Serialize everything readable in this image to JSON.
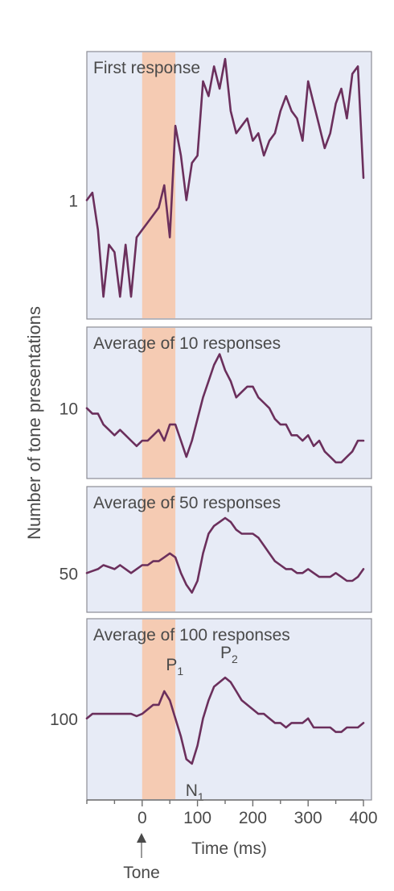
{
  "chart_data": {
    "type": "line",
    "ylabel": "Number of tone presentations",
    "xlabel": "Time (ms)",
    "x_ticks": [
      0,
      100,
      200,
      300,
      400
    ],
    "xlim": [
      -100,
      400
    ],
    "stimulus": {
      "label": "Tone",
      "shaded_interval_ms": [
        0,
        60
      ],
      "color": "#f6c8ac"
    },
    "trace_color": "#6b2f5c",
    "panels": [
      {
        "title": "First response",
        "row_label": "1",
        "ylim": [
          -1.6,
          2.0
        ],
        "x": [
          -100,
          -90,
          -80,
          -70,
          -60,
          -50,
          -40,
          -30,
          -20,
          -10,
          0,
          10,
          20,
          30,
          40,
          50,
          60,
          70,
          80,
          90,
          100,
          110,
          120,
          130,
          140,
          150,
          160,
          170,
          180,
          190,
          200,
          210,
          220,
          230,
          240,
          250,
          260,
          270,
          280,
          290,
          300,
          310,
          320,
          330,
          340,
          350,
          360,
          370,
          380,
          390,
          400
        ],
        "values": [
          0.0,
          0.1,
          -0.4,
          -1.3,
          -0.6,
          -0.7,
          -1.3,
          -0.6,
          -1.3,
          -0.5,
          -0.4,
          -0.3,
          -0.2,
          -0.1,
          0.2,
          -0.5,
          1.0,
          0.6,
          0.0,
          0.5,
          0.6,
          1.6,
          1.4,
          1.8,
          1.5,
          1.9,
          1.2,
          0.9,
          1.0,
          1.1,
          0.8,
          0.9,
          0.6,
          0.8,
          0.9,
          1.2,
          1.4,
          1.2,
          1.1,
          0.8,
          1.6,
          1.3,
          1.0,
          0.7,
          0.9,
          1.3,
          1.5,
          1.1,
          1.7,
          1.8,
          0.3
        ]
      },
      {
        "title": "Average of 10 responses",
        "row_label": "10",
        "ylim": [
          -1.3,
          1.5
        ],
        "x": [
          -100,
          -90,
          -80,
          -70,
          -60,
          -50,
          -40,
          -30,
          -20,
          -10,
          0,
          10,
          20,
          30,
          40,
          50,
          60,
          70,
          80,
          90,
          100,
          110,
          120,
          130,
          140,
          150,
          160,
          170,
          180,
          190,
          200,
          210,
          220,
          230,
          240,
          250,
          260,
          270,
          280,
          290,
          300,
          310,
          320,
          330,
          340,
          350,
          360,
          370,
          380,
          390,
          400
        ],
        "values": [
          0.0,
          -0.1,
          -0.1,
          -0.3,
          -0.4,
          -0.5,
          -0.4,
          -0.5,
          -0.6,
          -0.7,
          -0.6,
          -0.6,
          -0.5,
          -0.4,
          -0.6,
          -0.3,
          -0.3,
          -0.6,
          -0.9,
          -0.6,
          -0.2,
          0.2,
          0.5,
          0.8,
          1.0,
          0.7,
          0.5,
          0.2,
          0.3,
          0.4,
          0.4,
          0.2,
          0.1,
          0.0,
          -0.2,
          -0.3,
          -0.3,
          -0.5,
          -0.5,
          -0.6,
          -0.5,
          -0.7,
          -0.6,
          -0.8,
          -0.9,
          -1.0,
          -1.0,
          -0.9,
          -0.8,
          -0.6,
          -0.6
        ]
      },
      {
        "title": "Average of 50 responses",
        "row_label": "50",
        "ylim": [
          -1.0,
          2.2
        ],
        "x": [
          -100,
          -90,
          -80,
          -70,
          -60,
          -50,
          -40,
          -30,
          -20,
          -10,
          0,
          10,
          20,
          30,
          40,
          50,
          60,
          70,
          80,
          90,
          100,
          110,
          120,
          130,
          140,
          150,
          160,
          170,
          180,
          190,
          200,
          210,
          220,
          230,
          240,
          250,
          260,
          270,
          280,
          290,
          300,
          310,
          320,
          330,
          340,
          350,
          360,
          370,
          380,
          390,
          400
        ],
        "values": [
          0.0,
          0.05,
          0.1,
          0.2,
          0.15,
          0.1,
          0.2,
          0.1,
          0.0,
          0.1,
          0.2,
          0.2,
          0.3,
          0.3,
          0.4,
          0.5,
          0.4,
          0.0,
          -0.3,
          -0.5,
          -0.2,
          0.5,
          1.0,
          1.2,
          1.3,
          1.4,
          1.3,
          1.1,
          1.0,
          1.0,
          1.0,
          0.9,
          0.7,
          0.5,
          0.3,
          0.2,
          0.1,
          0.1,
          0.0,
          0.0,
          0.1,
          0.0,
          -0.1,
          -0.1,
          -0.1,
          0.0,
          -0.1,
          -0.2,
          -0.2,
          -0.1,
          0.1
        ]
      },
      {
        "title": "Average of 100 responses",
        "row_label": "100",
        "ylim": [
          -1.8,
          2.2
        ],
        "x": [
          -100,
          -90,
          -80,
          -70,
          -60,
          -50,
          -40,
          -30,
          -20,
          -10,
          0,
          10,
          20,
          30,
          40,
          50,
          60,
          70,
          80,
          90,
          100,
          110,
          120,
          130,
          140,
          150,
          160,
          170,
          180,
          190,
          200,
          210,
          220,
          230,
          240,
          250,
          260,
          270,
          280,
          290,
          300,
          310,
          320,
          330,
          340,
          350,
          360,
          370,
          380,
          390,
          400
        ],
        "values": [
          0.0,
          0.1,
          0.1,
          0.1,
          0.1,
          0.1,
          0.1,
          0.1,
          0.1,
          0.05,
          0.1,
          0.2,
          0.3,
          0.3,
          0.6,
          0.4,
          0.0,
          -0.4,
          -0.9,
          -1.0,
          -0.6,
          0.0,
          0.4,
          0.7,
          0.8,
          0.9,
          0.8,
          0.6,
          0.4,
          0.3,
          0.2,
          0.1,
          0.1,
          0.0,
          -0.1,
          -0.1,
          -0.2,
          -0.1,
          -0.1,
          -0.1,
          0.0,
          -0.2,
          -0.2,
          -0.2,
          -0.2,
          -0.3,
          -0.3,
          -0.2,
          -0.2,
          -0.2,
          -0.1
        ]
      }
    ],
    "annotations": [
      {
        "label": "P",
        "sub": "1",
        "panel": 3,
        "x_ms": 40,
        "value": 0.6
      },
      {
        "label": "N",
        "sub": "1",
        "panel": 3,
        "x_ms": 90,
        "value": -1.0
      },
      {
        "label": "P",
        "sub": "2",
        "panel": 3,
        "x_ms": 150,
        "value": 0.9
      }
    ]
  }
}
